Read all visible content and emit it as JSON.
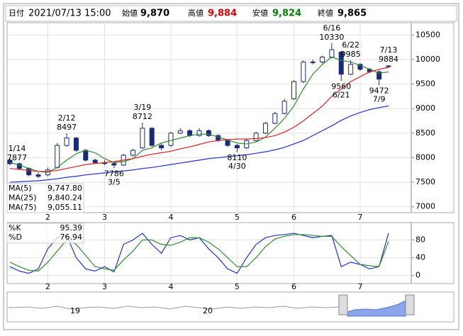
{
  "header": {
    "date_label": "日付",
    "date": "2021/07/13 15:00",
    "open_label": "始値",
    "open": "9,870",
    "high_label": "高値",
    "high": "9,884",
    "low_label": "安値",
    "low": "9,824",
    "close_label": "終値",
    "close": "9,865"
  },
  "chart_data": [
    {
      "type": "candlestick",
      "categories": [
        null,
        null,
        null,
        null,
        "2",
        null,
        null,
        null,
        null,
        null,
        "3",
        null,
        null,
        null,
        null,
        null,
        null,
        "4",
        null,
        null,
        null,
        null,
        null,
        null,
        "5",
        null,
        null,
        null,
        null,
        null,
        "6",
        null,
        null,
        null,
        null,
        null,
        null,
        "7",
        null,
        null,
        null
      ],
      "open": [
        7950,
        7877,
        7780,
        7650,
        7650,
        7800,
        8250,
        8400,
        8150,
        7950,
        7900,
        7880,
        7850,
        8050,
        8200,
        8600,
        8250,
        8250,
        8500,
        8550,
        8450,
        8550,
        8450,
        8350,
        8250,
        8200,
        8350,
        8500,
        8700,
        8900,
        9200,
        9550,
        9950,
        9950,
        10050,
        10150,
        9700,
        9900,
        9800,
        9750,
        9870
      ],
      "high": [
        7980,
        7900,
        7800,
        7700,
        7800,
        8300,
        8497,
        8420,
        8180,
        7980,
        7950,
        7920,
        8080,
        8180,
        8712,
        8620,
        8300,
        8530,
        8600,
        8580,
        8600,
        8580,
        8480,
        8380,
        8280,
        8380,
        8530,
        8730,
        8930,
        9200,
        9580,
        9980,
        10000,
        10080,
        10330,
        10180,
        9985,
        9930,
        9830,
        9780,
        9884
      ],
      "low": [
        7850,
        7750,
        7620,
        7580,
        7620,
        7780,
        8220,
        8120,
        7920,
        7870,
        7850,
        7786,
        7830,
        8020,
        8180,
        8220,
        8150,
        8220,
        8480,
        8420,
        8430,
        8420,
        8320,
        8220,
        8110,
        8180,
        8330,
        8480,
        8680,
        8880,
        9180,
        9520,
        9900,
        9920,
        10020,
        9560,
        9680,
        9770,
        9720,
        9472,
        9824
      ],
      "close": [
        7877,
        7780,
        7650,
        7620,
        7750,
        8250,
        8400,
        8150,
        7950,
        7900,
        7880,
        7850,
        8050,
        8150,
        8600,
        8250,
        8200,
        8500,
        8550,
        8450,
        8550,
        8450,
        8350,
        8250,
        8200,
        8350,
        8500,
        8700,
        8900,
        9150,
        9550,
        9950,
        9950,
        10050,
        10200,
        9700,
        9900,
        9800,
        9750,
        9600,
        9865
      ],
      "up_color": "#ffffff",
      "down_color": "#1a2a7a",
      "series": [
        {
          "name": "MA(5)",
          "color": "#2e8b2e",
          "last_label": "9,747.80",
          "values": [
            7900,
            7850,
            7780,
            7720,
            7700,
            7800,
            7950,
            8080,
            8150,
            8100,
            7980,
            7900,
            7920,
            7980,
            8150,
            8200,
            8300,
            8350,
            8400,
            8450,
            8480,
            8480,
            8420,
            8360,
            8300,
            8280,
            8320,
            8420,
            8600,
            8800,
            9050,
            9400,
            9700,
            9900,
            10050,
            9980,
            9950,
            9880,
            9800,
            9720,
            9747.8
          ]
        },
        {
          "name": "MA(25)",
          "color": "#e02020",
          "last_label": "9,840.24",
          "values": [
            7780,
            7760,
            7740,
            7720,
            7720,
            7740,
            7780,
            7820,
            7860,
            7880,
            7900,
            7920,
            7950,
            7980,
            8030,
            8070,
            8100,
            8130,
            8180,
            8220,
            8270,
            8320,
            8350,
            8370,
            8380,
            8380,
            8390,
            8410,
            8450,
            8520,
            8620,
            8750,
            8900,
            9050,
            9250,
            9400,
            9550,
            9650,
            9750,
            9800,
            9840.24
          ]
        },
        {
          "name": "MA(75)",
          "color": "#2030d0",
          "last_label": "9,055.11",
          "values": [
            7500,
            7510,
            7520,
            7530,
            7550,
            7570,
            7600,
            7620,
            7650,
            7670,
            7690,
            7710,
            7730,
            7750,
            7780,
            7800,
            7830,
            7860,
            7890,
            7920,
            7950,
            7980,
            8000,
            8020,
            8040,
            8060,
            8090,
            8120,
            8160,
            8210,
            8280,
            8350,
            8450,
            8550,
            8650,
            8760,
            8850,
            8920,
            8980,
            9020,
            9055.11
          ]
        }
      ],
      "annotations": [
        {
          "date": "1/14",
          "value": 7877
        },
        {
          "date": "2/12",
          "value": 8497
        },
        {
          "date": "3/5",
          "value": 7786
        },
        {
          "date": "3/19",
          "value": 8712
        },
        {
          "date": "4/30",
          "value": 8110
        },
        {
          "date": "6/16",
          "value": 10330
        },
        {
          "date": "6/21",
          "value": 9560
        },
        {
          "date": "6/22",
          "value": 9985
        },
        {
          "date": "7/9",
          "value": 9472
        },
        {
          "date": "7/13",
          "value": 9884
        }
      ],
      "ylim": [
        6880,
        10750
      ],
      "yticks": [
        7000,
        7500,
        8000,
        8500,
        9000,
        9500,
        10000,
        10500
      ],
      "grid": true
    },
    {
      "type": "line",
      "series": [
        {
          "name": "%K",
          "color": "#2030d0",
          "values": [
            20,
            10,
            5,
            15,
            60,
            85,
            90,
            40,
            15,
            10,
            20,
            8,
            70,
            80,
            95,
            70,
            50,
            85,
            90,
            80,
            85,
            60,
            40,
            15,
            5,
            40,
            70,
            85,
            90,
            92,
            95,
            90,
            85,
            88,
            90,
            20,
            30,
            25,
            15,
            20,
            95.39
          ]
        },
        {
          "name": "%D",
          "color": "#2e8b2e",
          "values": [
            30,
            20,
            12,
            10,
            30,
            55,
            80,
            70,
            45,
            20,
            15,
            12,
            35,
            55,
            80,
            80,
            70,
            68,
            75,
            85,
            85,
            75,
            60,
            40,
            20,
            20,
            40,
            65,
            82,
            88,
            92,
            92,
            90,
            88,
            88,
            65,
            45,
            25,
            22,
            20,
            76.94
          ]
        }
      ],
      "ylim": [
        -18,
        119
      ],
      "yticks": [
        0,
        40,
        80
      ],
      "grid": true
    }
  ],
  "navigator": {
    "labels": [
      "19",
      "20"
    ]
  }
}
